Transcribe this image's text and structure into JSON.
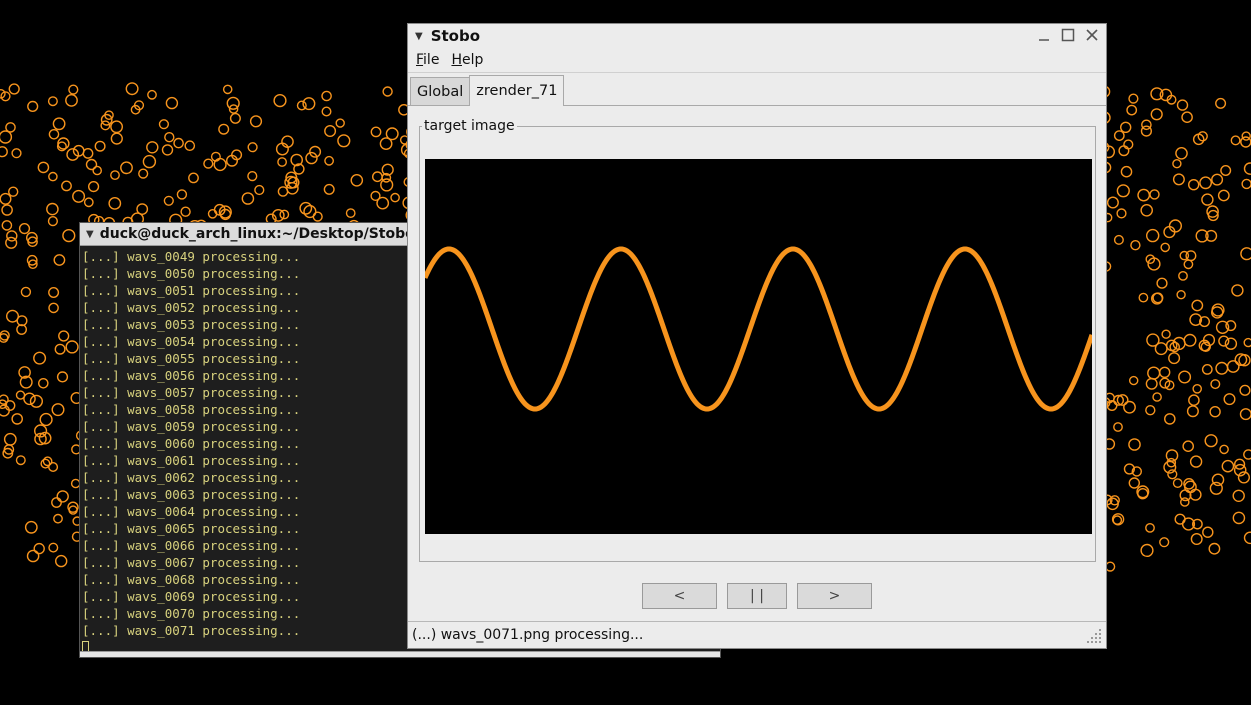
{
  "colors": {
    "accent": "#f7941d",
    "terminal_text": "#d8d27e",
    "desktop": "#000000"
  },
  "terminal": {
    "title": "duck@duck_arch_linux:~/Desktop/Stobo",
    "lines": [
      "[...] wavs_0049 processing...",
      "[...] wavs_0050 processing...",
      "[...] wavs_0051 processing...",
      "[...] wavs_0052 processing...",
      "[...] wavs_0053 processing...",
      "[...] wavs_0054 processing...",
      "[...] wavs_0055 processing...",
      "[...] wavs_0056 processing...",
      "[...] wavs_0057 processing...",
      "[...] wavs_0058 processing...",
      "[...] wavs_0059 processing...",
      "[...] wavs_0060 processing...",
      "[...] wavs_0061 processing...",
      "[...] wavs_0062 processing...",
      "[...] wavs_0063 processing...",
      "[...] wavs_0064 processing...",
      "[...] wavs_0065 processing...",
      "[...] wavs_0066 processing...",
      "[...] wavs_0067 processing...",
      "[...] wavs_0068 processing...",
      "[...] wavs_0069 processing...",
      "[...] wavs_0070 processing...",
      "[...] wavs_0071 processing..."
    ]
  },
  "window": {
    "title": "Stobo",
    "menu": {
      "file_first": "F",
      "file_rest": "ile",
      "help_first": "H",
      "help_rest": "elp"
    },
    "tabs": [
      {
        "label": "Global"
      },
      {
        "label": "zrender_71"
      }
    ],
    "group_label": "target image",
    "nav": {
      "prev": "<",
      "pause": "| |",
      "next": ">"
    },
    "status": "(...) wavs_0071.png processing..."
  }
}
